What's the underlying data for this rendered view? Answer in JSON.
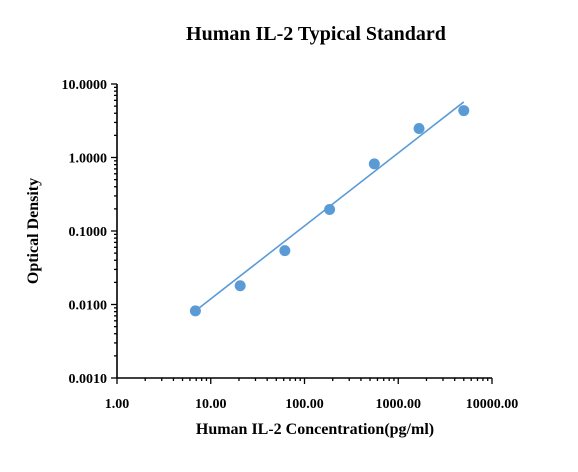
{
  "chart_data": {
    "type": "scatter",
    "title": "Human IL-2 Typical Standard",
    "xlabel": "Human IL-2 Concentration(pg/ml)",
    "ylabel": "Optical Density",
    "x_scale": "log",
    "y_scale": "log",
    "xlim": [
      1,
      10000
    ],
    "ylim": [
      0.001,
      10
    ],
    "x_tick_labels": [
      "1.00",
      "10.00",
      "100.00",
      "1000.00",
      "10000.00"
    ],
    "y_tick_labels": [
      "0.0010",
      "0.0100",
      "0.1000",
      "1.0000",
      "10.0000"
    ],
    "grid": false,
    "legend": false,
    "points": [
      {
        "x": 6.86,
        "y": 0.0082
      },
      {
        "x": 20.6,
        "y": 0.018
      },
      {
        "x": 61.7,
        "y": 0.054
      },
      {
        "x": 185.2,
        "y": 0.196
      },
      {
        "x": 555.6,
        "y": 0.82
      },
      {
        "x": 1666.7,
        "y": 2.48
      },
      {
        "x": 5000,
        "y": 4.35
      }
    ],
    "fit_line": {
      "x": [
        6.86,
        5000
      ],
      "y": [
        0.0082,
        5.7
      ]
    },
    "colors": {
      "points": "#5b9bd5",
      "fit_line": "#5b9bd5"
    }
  }
}
